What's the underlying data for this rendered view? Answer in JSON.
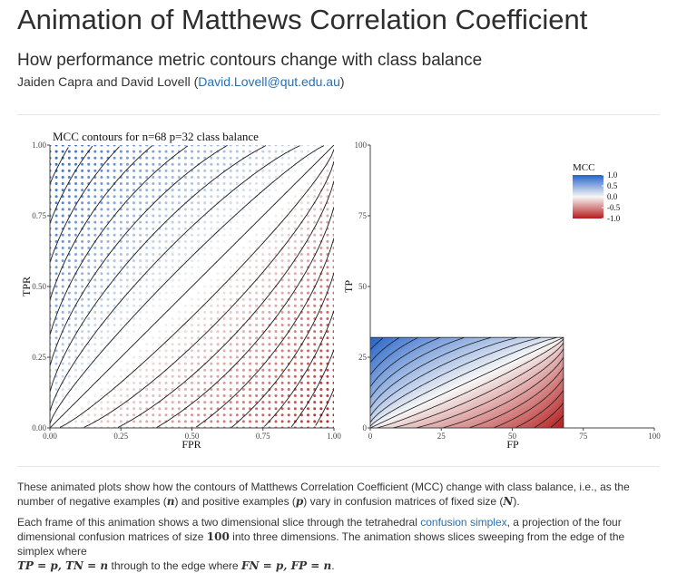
{
  "header": {
    "title": "Animation of Matthews Correlation Coefficient",
    "subtitle": "How performance metric contours change with class balance",
    "authors_prefix": "Jaiden Capra and David Lovell (",
    "email": "David.Lovell@qut.edu.au",
    "authors_suffix": ")"
  },
  "chart_data": [
    {
      "type": "contour",
      "title": "MCC contours for n=68 p=32 class balance",
      "xlabel": "FPR",
      "ylabel": "TPR",
      "xlim": [
        0,
        1
      ],
      "ylim": [
        0,
        1
      ],
      "xticks": [
        "0.00",
        "0.25",
        "0.50",
        "0.75",
        "1.00"
      ],
      "yticks": [
        "0.00",
        "0.25",
        "0.50",
        "0.75",
        "1.00"
      ],
      "n": 68,
      "p": 32,
      "metric": "MCC",
      "contour_levels": [
        -0.9,
        -0.8,
        -0.7,
        -0.6,
        -0.5,
        -0.4,
        -0.3,
        -0.2,
        -0.1,
        0.0,
        0.1,
        0.2,
        0.3,
        0.4,
        0.5,
        0.6,
        0.7,
        0.8,
        0.9
      ]
    },
    {
      "type": "contour",
      "title": "",
      "xlabel": "FP",
      "ylabel": "TP",
      "xlim": [
        0,
        100
      ],
      "ylim": [
        0,
        100
      ],
      "xticks": [
        "0",
        "25",
        "50",
        "75",
        "100"
      ],
      "yticks": [
        "0",
        "25",
        "50",
        "75",
        "100"
      ],
      "n": 68,
      "p": 32,
      "metric": "MCC",
      "contour_levels": [
        -0.9,
        -0.8,
        -0.7,
        -0.6,
        -0.5,
        -0.4,
        -0.3,
        -0.2,
        -0.1,
        0.0,
        0.1,
        0.2,
        0.3,
        0.4,
        0.5,
        0.6,
        0.7,
        0.8,
        0.9
      ],
      "legend": {
        "title": "MCC",
        "labels": [
          "1.0",
          "0.5",
          "0.0",
          "-0.5",
          "-1.0"
        ],
        "values": [
          1.0,
          0.5,
          0.0,
          -0.5,
          -1.0
        ],
        "placement": "top-right"
      }
    }
  ],
  "colors": {
    "positive": "#2563c9",
    "neutral": "#f7f7f7",
    "negative": "#b51c1c",
    "link": "#2a6fb0"
  },
  "description": {
    "p1": {
      "a": "These animated plots show how the contours of Matthews Correlation Coefficient (MCC) change with class balance, i.e., as the number of negative examples (",
      "n_sym": "n",
      "b": ") and positive examples (",
      "p_sym": "p",
      "c": ") vary in confusion matrices of fixed size (",
      "N_sym": "N",
      "d": ")."
    },
    "p2": {
      "a": "Each frame of this animation shows a two dimensional slice through the tetrahedral ",
      "link": "confusion simplex",
      "b": ", a projection of the four dimensional confusion matrices of size ",
      "size": "100",
      "c": " into three dimensions. The animation shows slices sweeping from the edge of the simplex where",
      "eq1": "TP = p, TN = n",
      "d": " through to the edge where ",
      "eq2": "FN = p, FP = n",
      "e": "."
    }
  }
}
